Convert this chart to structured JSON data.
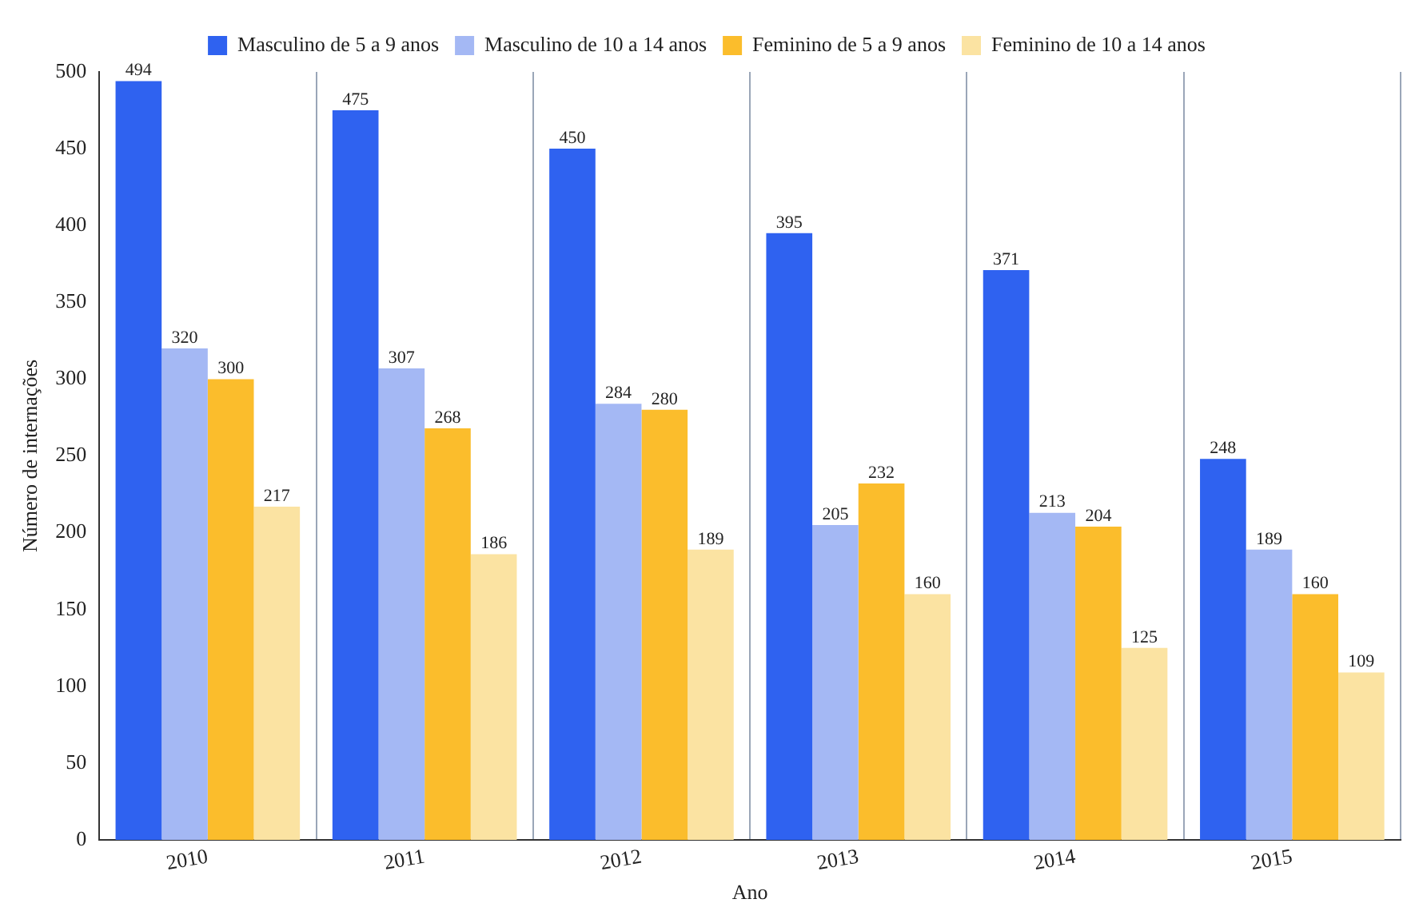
{
  "chart_data": {
    "type": "bar",
    "xlabel": "Ano",
    "ylabel": "Número de internações",
    "categories": [
      "2010",
      "2011",
      "2012",
      "2013",
      "2014",
      "2015"
    ],
    "series": [
      {
        "name": "Masculino de 5 a 9 anos",
        "color": "#2f62f0",
        "values": [
          494,
          475,
          450,
          395,
          371,
          248
        ]
      },
      {
        "name": "Masculino de 10 a 14 anos",
        "color": "#a4b8f4",
        "values": [
          320,
          307,
          284,
          205,
          213,
          189
        ]
      },
      {
        "name": "Feminino de 5 a 9 anos",
        "color": "#fbbd2c",
        "values": [
          300,
          268,
          280,
          232,
          204,
          160
        ]
      },
      {
        "name": "Feminino de 10 a 14 anos",
        "color": "#fbe3a2",
        "values": [
          217,
          186,
          189,
          160,
          125,
          109
        ]
      }
    ],
    "ylim": [
      0,
      500
    ],
    "yticks": [
      0,
      50,
      100,
      150,
      200,
      250,
      300,
      350,
      400,
      450,
      500
    ],
    "grid": "x",
    "legend": "top",
    "data_labels": true
  }
}
